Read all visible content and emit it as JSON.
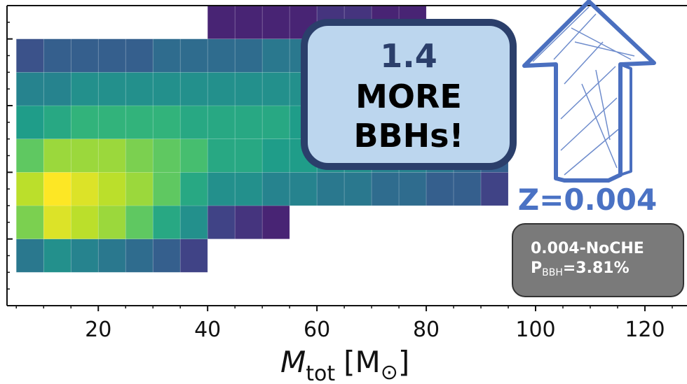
{
  "chart_data": {
    "type": "heatmap",
    "colormap": "viridis",
    "zlim": [
      0,
      1
    ],
    "xlim": [
      3.3,
      127.7
    ],
    "ylim": [
      0,
      4.5
    ],
    "xticks": [
      20,
      40,
      60,
      80,
      100,
      120
    ],
    "xminorticks": [
      5,
      10,
      15,
      25,
      30,
      35,
      45,
      50,
      55,
      65,
      70,
      75,
      85,
      90,
      95,
      105,
      110,
      115,
      125
    ],
    "yticks": [
      1,
      2,
      3,
      4
    ],
    "yminorticks": [
      0.25,
      0.5,
      0.75,
      1.25,
      1.5,
      1.75,
      2.25,
      2.5,
      2.75,
      3.25,
      3.5,
      3.75,
      4.25
    ],
    "xlabel": {
      "symbol": "M",
      "sub": "tot",
      "unit_open": "[M",
      "unit_sub": "⊙",
      "unit_close": "]"
    },
    "x_edges": [
      5,
      10,
      15,
      20,
      25,
      30,
      35,
      40,
      45,
      50,
      55,
      60,
      65,
      70,
      75,
      80,
      85,
      90,
      95
    ],
    "y_edges": [
      0.5,
      1.0,
      1.5,
      2.0,
      2.5,
      3.0,
      3.5,
      4.0,
      4.5
    ],
    "z": [
      [
        0.4,
        0.5,
        0.45,
        0.4,
        0.35,
        0.3,
        0.2,
        null,
        null,
        null,
        null,
        null,
        null,
        null,
        null,
        null,
        null,
        null
      ],
      [
        0.8,
        0.95,
        0.9,
        0.85,
        0.75,
        0.6,
        0.5,
        0.2,
        0.15,
        0.1,
        null,
        null,
        null,
        null,
        null,
        null,
        null,
        null
      ],
      [
        0.9,
        1.0,
        0.95,
        0.9,
        0.85,
        0.75,
        0.6,
        0.5,
        0.5,
        0.45,
        0.45,
        0.4,
        0.4,
        0.35,
        0.35,
        0.3,
        0.3,
        0.2
      ],
      [
        0.75,
        0.85,
        0.85,
        0.85,
        0.8,
        0.75,
        0.7,
        0.6,
        0.6,
        0.55,
        0.55,
        0.5,
        0.5,
        0.45,
        0.45,
        0.4,
        0.35,
        0.3
      ],
      [
        0.55,
        0.6,
        0.65,
        0.65,
        0.65,
        0.65,
        0.6,
        0.6,
        0.6,
        0.6,
        0.55,
        0.55,
        0.5,
        0.5,
        0.45,
        0.45,
        0.4,
        0.35
      ],
      [
        0.45,
        0.45,
        0.5,
        0.5,
        0.5,
        0.5,
        0.5,
        0.5,
        0.5,
        0.5,
        0.5,
        0.5,
        0.45,
        0.45,
        0.4,
        0.4,
        0.35,
        0.3
      ],
      [
        0.25,
        0.3,
        0.3,
        0.3,
        0.3,
        0.35,
        0.35,
        0.35,
        0.35,
        0.4,
        0.4,
        0.4,
        0.35,
        0.35,
        0.3,
        0.3,
        0.25,
        0.2
      ],
      [
        null,
        null,
        null,
        null,
        null,
        null,
        null,
        0.1,
        0.1,
        0.1,
        0.1,
        0.15,
        0.15,
        0.1,
        0.1,
        null,
        null,
        null
      ]
    ],
    "callout": {
      "lines": [
        "1.4",
        "MORE",
        "BBHs!"
      ]
    },
    "metallicity": "Z=0.004",
    "info_box": {
      "model": "0.004-NoCHE",
      "prob_symbol": "P",
      "prob_sub": "BBH",
      "prob_value": "=3.81%"
    }
  }
}
